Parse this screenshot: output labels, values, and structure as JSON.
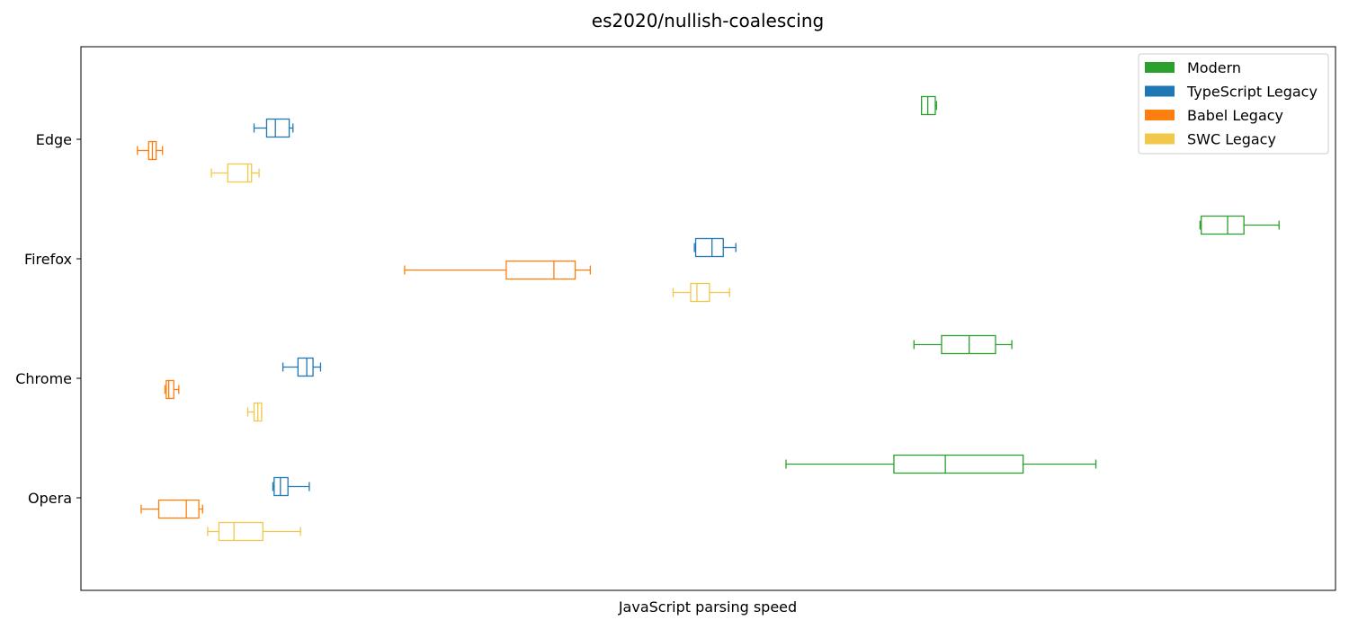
{
  "chart_data": {
    "type": "boxplot",
    "orientation": "horizontal",
    "title": "es2020/nullish-coalescing",
    "xlabel": "JavaScript parsing speed",
    "ylabel": "",
    "x_ticks_shown": false,
    "xlim": [
      0,
      1000
    ],
    "categories": [
      "Edge",
      "Firefox",
      "Chrome",
      "Opera"
    ],
    "legend_position": "top-right",
    "series": [
      {
        "name": "Modern",
        "color": "#2ca02c",
        "boxes": [
          {
            "category": "Edge",
            "whisker_low": 670,
            "q1": 670,
            "median": 675,
            "q3": 681,
            "whisker_high": 682
          },
          {
            "category": "Firefox",
            "whisker_low": 892,
            "q1": 893,
            "median": 914,
            "q3": 927,
            "whisker_high": 955
          },
          {
            "category": "Chrome",
            "whisker_low": 664,
            "q1": 686,
            "median": 708,
            "q3": 729,
            "whisker_high": 742
          },
          {
            "category": "Opera",
            "whisker_low": 562,
            "q1": 648,
            "median": 689,
            "q3": 751,
            "whisker_high": 809
          }
        ]
      },
      {
        "name": "TypeScript Legacy",
        "color": "#1f77b4",
        "boxes": [
          {
            "category": "Edge",
            "whisker_low": 138,
            "q1": 148,
            "median": 155,
            "q3": 166,
            "whisker_high": 169
          },
          {
            "category": "Firefox",
            "whisker_low": 489,
            "q1": 490,
            "median": 503,
            "q3": 512,
            "whisker_high": 522
          },
          {
            "category": "Chrome",
            "whisker_low": 161,
            "q1": 173,
            "median": 180,
            "q3": 185,
            "whisker_high": 191
          },
          {
            "category": "Opera",
            "whisker_low": 153,
            "q1": 154,
            "median": 159,
            "q3": 165,
            "whisker_high": 182
          }
        ]
      },
      {
        "name": "Babel Legacy",
        "color": "#ff7f0e",
        "boxes": [
          {
            "category": "Edge",
            "whisker_low": 45,
            "q1": 54,
            "median": 57,
            "q3": 60,
            "whisker_high": 65
          },
          {
            "category": "Firefox",
            "whisker_low": 258,
            "q1": 339,
            "median": 377,
            "q3": 394,
            "whisker_high": 406
          },
          {
            "category": "Chrome",
            "whisker_low": 67,
            "q1": 68,
            "median": 70,
            "q3": 74,
            "whisker_high": 78
          },
          {
            "category": "Opera",
            "whisker_low": 48,
            "q1": 62,
            "median": 84,
            "q3": 94,
            "whisker_high": 97
          }
        ]
      },
      {
        "name": "SWC Legacy",
        "color": "#f2c84b",
        "boxes": [
          {
            "category": "Edge",
            "whisker_low": 104,
            "q1": 117,
            "median": 133,
            "q3": 136,
            "whisker_high": 142
          },
          {
            "category": "Firefox",
            "whisker_low": 472,
            "q1": 486,
            "median": 491,
            "q3": 501,
            "whisker_high": 517
          },
          {
            "category": "Chrome",
            "whisker_low": 133,
            "q1": 138,
            "median": 141,
            "q3": 144,
            "whisker_high": 144
          },
          {
            "category": "Opera",
            "whisker_low": 101,
            "q1": 110,
            "median": 122,
            "q3": 145,
            "whisker_high": 175
          }
        ]
      }
    ]
  }
}
